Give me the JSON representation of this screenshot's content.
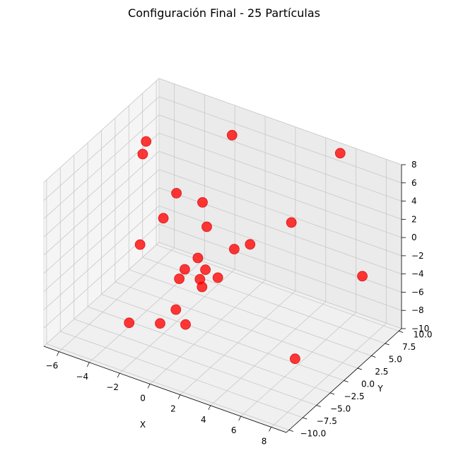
{
  "chart_data": {
    "type": "scatter3d",
    "title": "Configuración Final - 25 Partículas",
    "xlabel": "X",
    "ylabel": "Y",
    "zlabel": "",
    "xlim": [
      -7,
      9
    ],
    "ylim": [
      -10.5,
      10.5
    ],
    "zlim": [
      -10,
      8
    ],
    "xticks": [
      -6,
      -4,
      -2,
      0,
      2,
      4,
      6,
      8
    ],
    "yticks": [
      -10.0,
      -7.5,
      -5.0,
      -2.5,
      0.0,
      2.5,
      5.0,
      7.5,
      10.0
    ],
    "ytick_labels": [
      "−10.0",
      "−7.5",
      "−5.0",
      "−2.5",
      "0.0",
      "2.5",
      "5.0",
      "7.5",
      "10.0"
    ],
    "zticks": [
      -10,
      -8,
      -6,
      -4,
      -2,
      0,
      2,
      4,
      6,
      8
    ],
    "ztick_labels": [
      "−10",
      "−8",
      "−6",
      "−4",
      "−2",
      "0",
      "2",
      "4",
      "6",
      "8"
    ],
    "xtick_labels": [
      "−6",
      "−4",
      "−2",
      "0",
      "2",
      "4",
      "6",
      "8"
    ],
    "color": "#ff0000",
    "points": [
      {
        "x": -5.0,
        "y": 2.0,
        "z": 5.5
      },
      {
        "x": -5.5,
        "y": 4.0,
        "z": 5.5
      },
      {
        "x": -2.0,
        "y": 10.0,
        "z": 5.0
      },
      {
        "x": -3.0,
        "y": -4.0,
        "z": 0.0
      },
      {
        "x": -3.5,
        "y": 4.0,
        "z": 1.0
      },
      {
        "x": -2.5,
        "y": 6.0,
        "z": -0.5
      },
      {
        "x": -4.0,
        "y": 3.0,
        "z": -1.5
      },
      {
        "x": -1.5,
        "y": 4.0,
        "z": -1.5
      },
      {
        "x": 3.0,
        "y": 7.0,
        "z": 0.0
      },
      {
        "x": 1.0,
        "y": 5.0,
        "z": -2.5
      },
      {
        "x": 0.5,
        "y": 3.5,
        "z": -2.5
      },
      {
        "x": 7.5,
        "y": 7.5,
        "z": -3.5
      },
      {
        "x": -1.0,
        "y": 1.0,
        "z": -3.0
      },
      {
        "x": -1.5,
        "y": 0.0,
        "z": -4.0
      },
      {
        "x": -0.5,
        "y": 1.0,
        "z": -4.0
      },
      {
        "x": -1.5,
        "y": -1.0,
        "z": -4.5
      },
      {
        "x": -0.5,
        "y": 0.0,
        "z": -4.5
      },
      {
        "x": 0.5,
        "y": 0.5,
        "z": -4.0
      },
      {
        "x": 0.0,
        "y": -1.0,
        "z": -4.5
      },
      {
        "x": -1.0,
        "y": -3.0,
        "z": -6.5
      },
      {
        "x": 0.0,
        "y": -4.0,
        "z": -7.0
      },
      {
        "x": -1.5,
        "y": -4.5,
        "z": -7.5
      },
      {
        "x": -3.0,
        "y": -6.0,
        "z": -7.5
      },
      {
        "x": 6.5,
        "y": -2.0,
        "z": -8.0
      },
      {
        "x": 5.5,
        "y": 9.0,
        "z": 8.0
      }
    ]
  }
}
